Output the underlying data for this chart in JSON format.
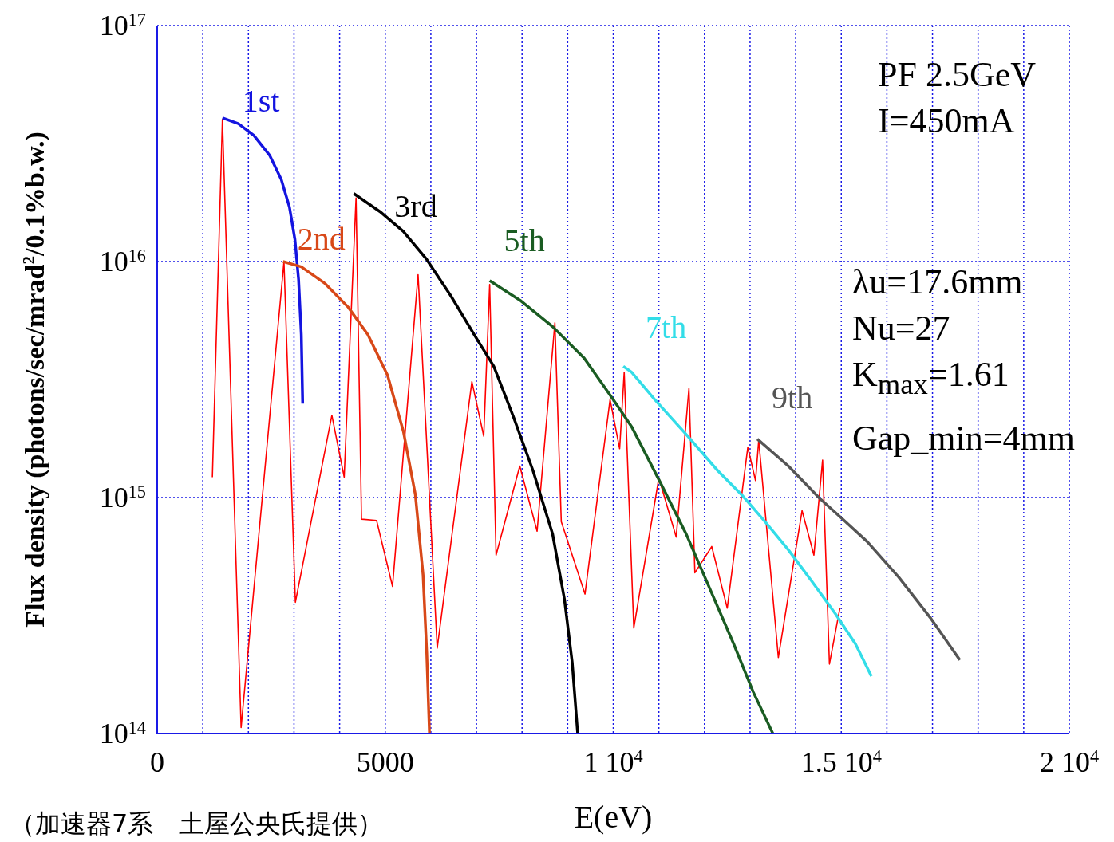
{
  "chart_data": {
    "type": "line",
    "xlabel": "E(eV)",
    "ylabel": "Flux density (photons/sec/mrad$^{2}$/0.1%b.w.)",
    "log": "y",
    "grid": true,
    "line_style": "solid",
    "xlim": [
      0,
      20000
    ],
    "xticks": [
      0,
      {
        "value": 1000,
        "label": null
      },
      {
        "value": 2000,
        "label": null
      },
      {
        "value": 3000,
        "label": null
      },
      {
        "value": 4000,
        "label": null
      },
      5000,
      {
        "value": 6000,
        "label": null
      },
      {
        "value": 7000,
        "label": null
      },
      {
        "value": 8000,
        "label": null
      },
      {
        "value": 9000,
        "label": null
      },
      {
        "value": 10000,
        "label": "1 10$^{4}$"
      },
      {
        "value": 11000,
        "label": null
      },
      {
        "value": 12000,
        "label": null
      },
      {
        "value": 13000,
        "label": null
      },
      {
        "value": 14000,
        "label": null
      },
      {
        "value": 15000,
        "label": "1.5 10$^{4}$"
      },
      {
        "value": 16000,
        "label": null
      },
      {
        "value": 17000,
        "label": null
      },
      {
        "value": 18000,
        "label": null
      },
      {
        "value": 19000,
        "label": null
      },
      {
        "value": 20000,
        "label": "2 10$^{4}$"
      }
    ],
    "ylim": [
      100000000000000.0,
      1e+17
    ],
    "yticks": [
      {
        "value": 100000000000000.0,
        "label": "10$^{14}$"
      },
      {
        "value": 1000000000000000.0,
        "label": "10$^{15}$"
      },
      {
        "value": 1e+16,
        "label": "10$^{16}$"
      },
      {
        "value": 1e+17,
        "label": "10$^{17}$"
      }
    ],
    "series": [
      {
        "color": "#ff0000",
        "x": [
          1210,
          1430,
          1840,
          2780,
          3030,
          3830,
          4100,
          4360,
          4480,
          4810,
          5160,
          5720,
          6140,
          6900,
          7160,
          7290,
          7430,
          7950,
          8330,
          8720,
          8860,
          9380,
          9930,
          10140,
          10240,
          10450,
          11000,
          11380,
          11660,
          11790,
          12160,
          12500,
          12950,
          13120,
          13190,
          13620,
          14140,
          14400,
          14590,
          14740,
          14970
        ],
        "values": [
          1220000000000000.0,
          4e+16,
          106000000000000.0,
          1e+16,
          360000000000000.0,
          2230000000000000.0,
          1220000000000000.0,
          1.86e+16,
          810000000000000.0,
          800000000000000.0,
          420000000000000.0,
          8800000000000000.0,
          230000000000000.0,
          3100000000000000.0,
          1820000000000000.0,
          8000000000000000.0,
          570000000000000.0,
          1360000000000000.0,
          720000000000000.0,
          5500000000000000.0,
          790000000000000.0,
          390000000000000.0,
          2600000000000000.0,
          1610000000000000.0,
          3400000000000000.0,
          280000000000000.0,
          1210000000000000.0,
          680000000000000.0,
          2900000000000000.0,
          480000000000000.0,
          620000000000000.0,
          340000000000000.0,
          1630000000000000.0,
          1180000000000000.0,
          1750000000000000.0,
          210000000000000.0,
          880000000000000.0,
          570000000000000.0,
          1440000000000000.0,
          197000000000000.0,
          340000000000000.0
        ]
      },
      {
        "name": "1st",
        "color": "#1414e0",
        "x": [
          1430,
          1780,
          2120,
          2470,
          2720,
          2900,
          3020,
          3100,
          3160,
          3190
        ],
        "values": [
          4.06e+16,
          3.84e+16,
          3.42e+16,
          2.81e+16,
          2.23e+16,
          1.7e+16,
          1.24e+16,
          8400000000000000.0,
          4900000000000000.0,
          2500000000000000.0
        ]
      },
      {
        "name": "2nd",
        "color": "#d84818",
        "x": [
          2760,
          3160,
          3670,
          4190,
          4620,
          5050,
          5400,
          5660,
          5830,
          5910,
          5970
        ],
        "values": [
          1e+16,
          9500000000000000.0,
          8100000000000000.0,
          6400000000000000.0,
          4900000000000000.0,
          3300000000000000.0,
          1900000000000000.0,
          1030000000000000.0,
          470000000000000.0,
          220000000000000.0,
          100000000000000.0
        ]
      },
      {
        "name": "3rd",
        "color": "#000000",
        "x": [
          4310,
          4880,
          5400,
          5910,
          6430,
          6950,
          7380,
          7810,
          8240,
          8670,
          8930,
          9100,
          9220
        ],
        "values": [
          1.94e+16,
          1.63e+16,
          1.34e+16,
          1.02e+16,
          7200000000000000.0,
          4900000000000000.0,
          3600000000000000.0,
          2200000000000000.0,
          1300000000000000.0,
          700000000000000.0,
          370000000000000.0,
          200000000000000.0,
          100000000000000.0
        ]
      },
      {
        "name": "5th",
        "color": "#1a5c22",
        "x": [
          7290,
          7980,
          8670,
          9360,
          10000,
          10400,
          11030,
          11600,
          12120,
          12640,
          13070,
          13500
        ],
        "values": [
          8300000000000000.0,
          6800000000000000.0,
          5300000000000000.0,
          3900000000000000.0,
          2600000000000000.0,
          2000000000000000.0,
          1160000000000000.0,
          700000000000000.0,
          410000000000000.0,
          240000000000000.0,
          150000000000000.0,
          100000000000000.0
        ]
      },
      {
        "name": "7th",
        "color": "#33dde8",
        "x": [
          10220,
          10400,
          10910,
          11600,
          12290,
          12810,
          13330,
          13840,
          14360,
          14880,
          15310,
          15660
        ],
        "values": [
          3600000000000000.0,
          3400000000000000.0,
          2600000000000000.0,
          1850000000000000.0,
          1300000000000000.0,
          1030000000000000.0,
          790000000000000.0,
          600000000000000.0,
          440000000000000.0,
          320000000000000.0,
          240000000000000.0,
          175000000000000.0
        ]
      },
      {
        "name": "9th",
        "color": "#555555",
        "x": [
          13160,
          13840,
          14530,
          15000,
          15570,
          16260,
          16950,
          17600
        ],
        "values": [
          1770000000000000.0,
          1360000000000000.0,
          990000000000000.0,
          820000000000000.0,
          650000000000000.0,
          460000000000000.0,
          310000000000000.0,
          205000000000000.0
        ]
      }
    ],
    "annotations": [
      "PF 2.5GeV",
      "I=450mA",
      "λu=17.6mm",
      "Nu=27",
      "K$_{max}$=1.61",
      "Gap_min=4mm",
      "（加速器7系　土屋公央氏提供）"
    ]
  }
}
